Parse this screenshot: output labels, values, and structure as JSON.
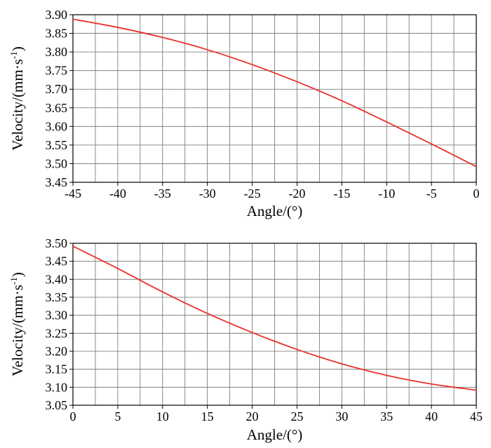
{
  "chart_data": [
    {
      "type": "line",
      "xlabel": "Angle/(°)",
      "ylabel": "Velocity/(mm·s",
      "ylabel_sup": "-1",
      "ylabel_close": ")",
      "xlim": [
        -45,
        0
      ],
      "ylim": [
        3.45,
        3.9
      ],
      "x_ticks": [
        -45,
        -40,
        -35,
        -30,
        -25,
        -20,
        -15,
        -10,
        -5,
        0
      ],
      "x_tick_labels": [
        "-45",
        "-40",
        "-35",
        "-30",
        "-25",
        "-20",
        "-15",
        "-10",
        "-5",
        "0"
      ],
      "y_ticks": [
        3.45,
        3.5,
        3.55,
        3.6,
        3.65,
        3.7,
        3.75,
        3.8,
        3.85,
        3.9
      ],
      "y_tick_labels": [
        "3.45",
        "3.50",
        "3.55",
        "3.60",
        "3.65",
        "3.70",
        "3.75",
        "3.80",
        "3.85",
        "3.90"
      ],
      "x_minor_step": 2.5,
      "grid": true,
      "line_color": "#e8312a",
      "series": [
        {
          "x": [
            -45,
            -40,
            -35,
            -30,
            -25,
            -20,
            -15,
            -10,
            -5,
            0
          ],
          "y": [
            3.888,
            3.866,
            3.839,
            3.806,
            3.766,
            3.72,
            3.669,
            3.612,
            3.553,
            3.492
          ]
        }
      ]
    },
    {
      "type": "line",
      "xlabel": "Angle/(°)",
      "ylabel": "Velocity/(mm·s",
      "ylabel_sup": "-1",
      "ylabel_close": ")",
      "xlim": [
        0,
        45
      ],
      "ylim": [
        3.05,
        3.5
      ],
      "x_ticks": [
        0,
        5,
        10,
        15,
        20,
        25,
        30,
        35,
        40,
        45
      ],
      "x_tick_labels": [
        "0",
        "5",
        "10",
        "15",
        "20",
        "25",
        "30",
        "35",
        "40",
        "45"
      ],
      "y_ticks": [
        3.05,
        3.1,
        3.15,
        3.2,
        3.25,
        3.3,
        3.35,
        3.4,
        3.45,
        3.5
      ],
      "y_tick_labels": [
        "3.05",
        "3.10",
        "3.15",
        "3.20",
        "3.25",
        "3.30",
        "3.35",
        "3.40",
        "3.45",
        "3.50"
      ],
      "x_minor_step": 2.5,
      "grid": true,
      "line_color": "#e8312a",
      "series": [
        {
          "x": [
            0,
            5,
            10,
            15,
            20,
            25,
            30,
            35,
            40,
            45
          ],
          "y": [
            3.492,
            3.43,
            3.365,
            3.305,
            3.252,
            3.205,
            3.165,
            3.133,
            3.109,
            3.092
          ]
        }
      ]
    }
  ]
}
